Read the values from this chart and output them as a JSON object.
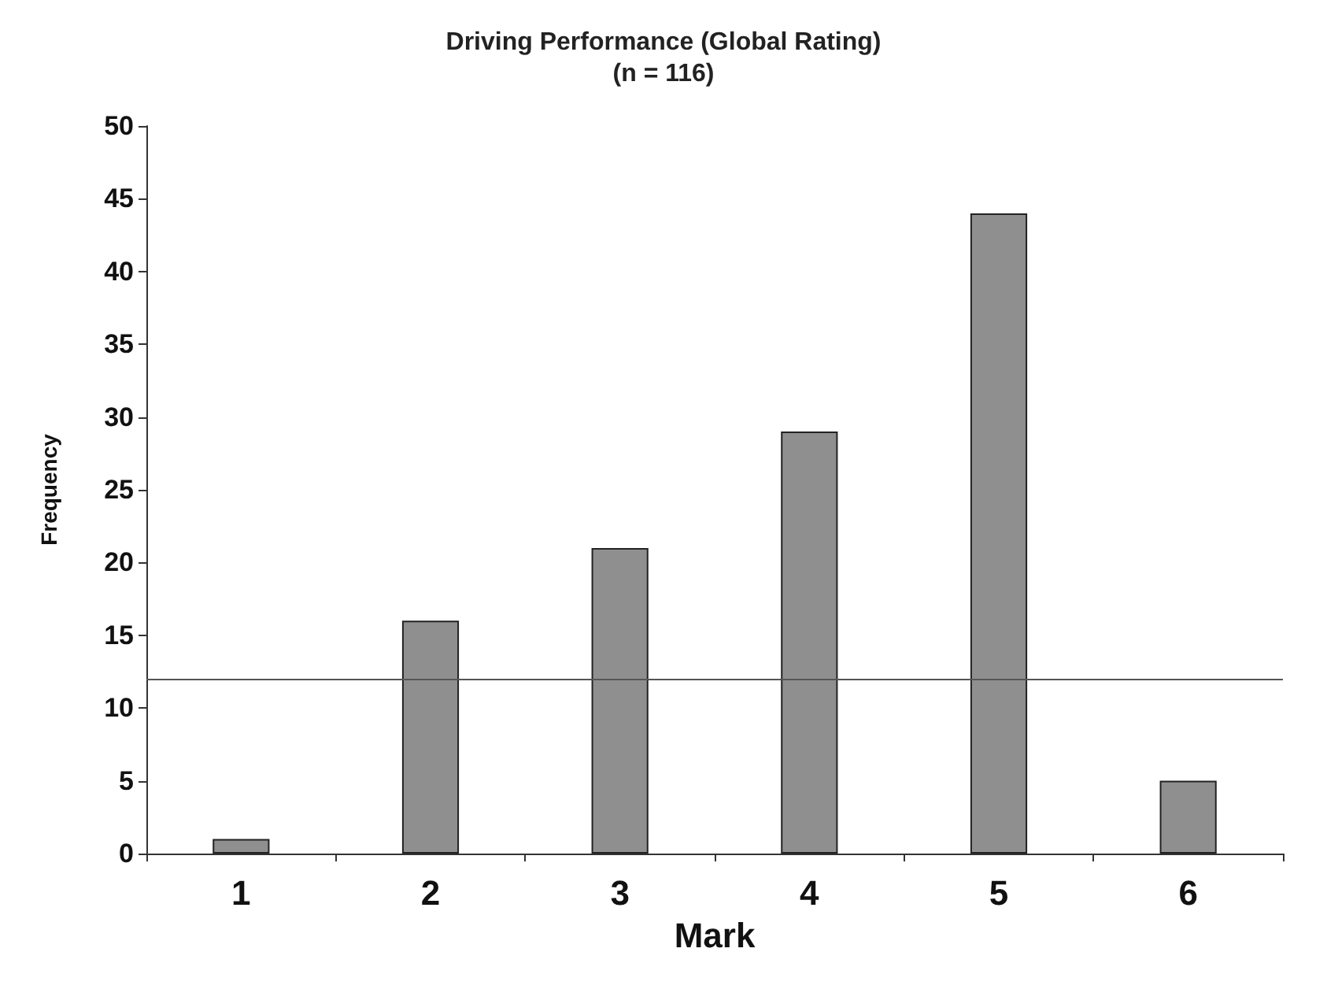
{
  "chart_data": {
    "type": "bar",
    "title": "Driving Performance (Global Rating)",
    "subtitle": "(n = 116)",
    "xlabel": "Mark",
    "ylabel": "Frequency",
    "categories": [
      "1",
      "2",
      "3",
      "4",
      "5",
      "6"
    ],
    "values": [
      1,
      16,
      21,
      29,
      44,
      5
    ],
    "color": "#8f8f8f",
    "ylim": [
      0,
      50
    ],
    "yticks": [
      0,
      5,
      10,
      15,
      20,
      25,
      30,
      35,
      40,
      45,
      50
    ],
    "ref_lines": [
      {
        "axis": "y",
        "value": 12,
        "color": "#555555"
      }
    ],
    "grid": false
  }
}
